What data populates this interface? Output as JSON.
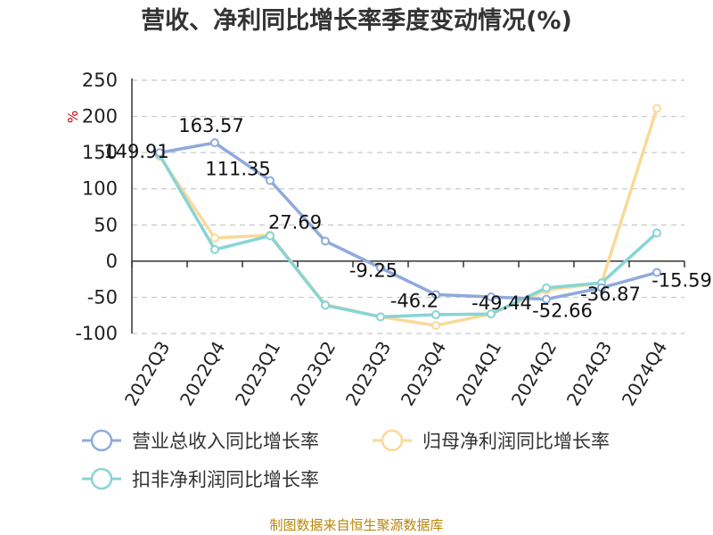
{
  "chart_data": {
    "type": "line",
    "title": "营收、净利同比增长率季度变动情况(%)",
    "ylabel": "%",
    "ylim": [
      -100,
      250
    ],
    "yticks": [
      -100,
      -50,
      0,
      50,
      100,
      150,
      200,
      250
    ],
    "categories": [
      "2022Q3",
      "2022Q4",
      "2023Q1",
      "2023Q2",
      "2023Q3",
      "2023Q4",
      "2024Q1",
      "2024Q2",
      "2024Q3",
      "2024Q4"
    ],
    "grid": true,
    "legend_position": "bottom",
    "series": [
      {
        "name": "营业总收入同比增长率",
        "color": "#8faadc",
        "values": [
          149.91,
          163.57,
          111.35,
          27.69,
          -9.25,
          -46.2,
          -49.44,
          -52.66,
          -36.87,
          -15.59
        ],
        "labels": [
          "149.91",
          "163.57",
          "111.35",
          "27.69",
          "-9.25",
          "-46.2",
          "-49.44",
          "-52.66",
          "-36.87",
          "-15.59"
        ]
      },
      {
        "name": "归母净利润同比增长率",
        "color": "#fad999",
        "values": [
          145,
          32,
          36,
          -60,
          -77,
          -89,
          -73,
          -40,
          -30,
          211
        ]
      },
      {
        "name": "扣非净利润同比增长率",
        "color": "#88d4d6",
        "values": [
          147,
          16,
          35,
          -61,
          -77,
          -74,
          -73,
          -37,
          -30,
          39
        ]
      }
    ]
  },
  "footer": {
    "source": "制图数据来自恒生聚源数据库"
  }
}
